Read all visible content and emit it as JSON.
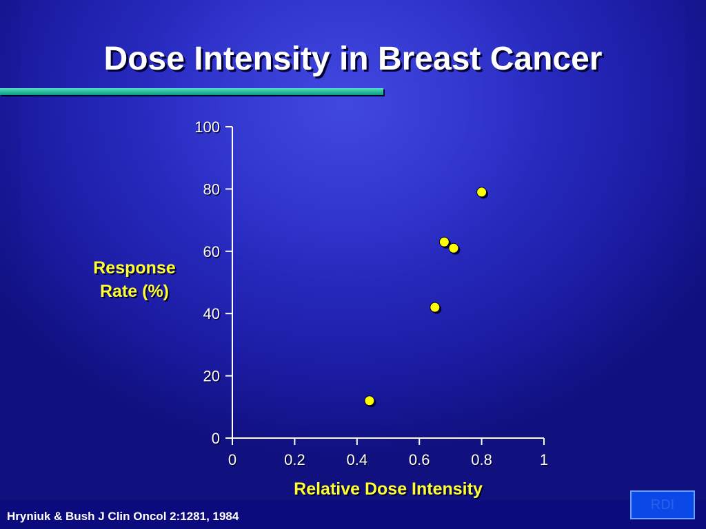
{
  "slide": {
    "title": "Dose Intensity in Breast Cancer",
    "citation": "Hryniuk & Bush J Clin Oncol 2:1281, 1984",
    "nav_button_label": "RDI",
    "colors": {
      "background": "#2a2cc0",
      "title_rule": "#1fbf9f",
      "axis_label": "#ffff33",
      "point_fill": "#ffff00"
    }
  },
  "chart_data": {
    "type": "scatter",
    "title": "",
    "xlabel": "Relative Dose Intensity",
    "ylabel_lines": [
      "Response",
      "Rate (%)"
    ],
    "xlim": [
      0,
      1
    ],
    "ylim": [
      0,
      100
    ],
    "x_ticks": [
      "0",
      "0.2",
      "0.4",
      "0.6",
      "0.8",
      "1"
    ],
    "y_ticks": [
      "0",
      "20",
      "40",
      "60",
      "80",
      "100"
    ],
    "grid": false,
    "legend": "none",
    "points": [
      {
        "x": 0.44,
        "y": 12
      },
      {
        "x": 0.65,
        "y": 42
      },
      {
        "x": 0.68,
        "y": 63
      },
      {
        "x": 0.71,
        "y": 61
      },
      {
        "x": 0.8,
        "y": 79
      }
    ]
  }
}
